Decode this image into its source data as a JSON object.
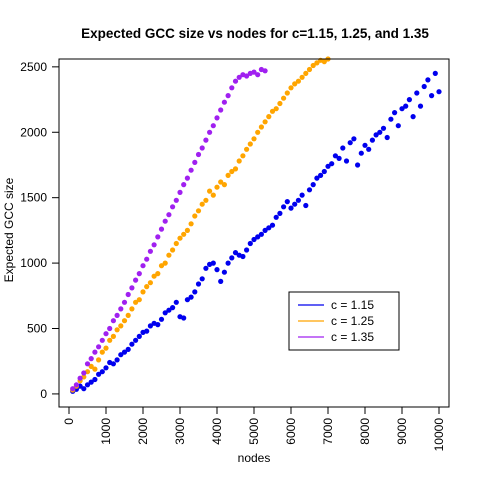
{
  "chart_data": {
    "type": "scatter",
    "title": "Expected GCC size vs nodes for c=1.15, 1.25, and 1.35",
    "xlabel": "nodes",
    "ylabel": "Expected GCC size",
    "xlim": [
      -270,
      10270
    ],
    "ylim": [
      -100,
      2560
    ],
    "x_ticks": [
      0,
      1000,
      2000,
      3000,
      4000,
      5000,
      6000,
      7000,
      8000,
      9000,
      10000
    ],
    "y_ticks": [
      0,
      500,
      1000,
      1500,
      2000,
      2500
    ],
    "grid": false,
    "legend_position": "lower-right",
    "series": [
      {
        "name": "c = 1.15",
        "color": "#0000ee",
        "points": [
          [
            100,
            20
          ],
          [
            200,
            35
          ],
          [
            300,
            60
          ],
          [
            400,
            40
          ],
          [
            500,
            70
          ],
          [
            600,
            90
          ],
          [
            700,
            110
          ],
          [
            800,
            150
          ],
          [
            900,
            170
          ],
          [
            1000,
            200
          ],
          [
            1100,
            240
          ],
          [
            1200,
            230
          ],
          [
            1300,
            260
          ],
          [
            1400,
            300
          ],
          [
            1500,
            320
          ],
          [
            1600,
            340
          ],
          [
            1700,
            380
          ],
          [
            1800,
            410
          ],
          [
            1900,
            440
          ],
          [
            2000,
            470
          ],
          [
            2100,
            480
          ],
          [
            2200,
            520
          ],
          [
            2300,
            540
          ],
          [
            2400,
            530
          ],
          [
            2500,
            570
          ],
          [
            2600,
            620
          ],
          [
            2700,
            640
          ],
          [
            2800,
            660
          ],
          [
            2900,
            700
          ],
          [
            3000,
            590
          ],
          [
            3100,
            580
          ],
          [
            3200,
            720
          ],
          [
            3300,
            740
          ],
          [
            3400,
            780
          ],
          [
            3500,
            840
          ],
          [
            3600,
            880
          ],
          [
            3700,
            960
          ],
          [
            3800,
            990
          ],
          [
            3900,
            1000
          ],
          [
            4000,
            950
          ],
          [
            4100,
            860
          ],
          [
            4200,
            930
          ],
          [
            4300,
            1000
          ],
          [
            4400,
            1040
          ],
          [
            4500,
            1080
          ],
          [
            4600,
            1060
          ],
          [
            4700,
            1050
          ],
          [
            4800,
            1100
          ],
          [
            4900,
            1150
          ],
          [
            5000,
            1180
          ],
          [
            5100,
            1200
          ],
          [
            5200,
            1220
          ],
          [
            5300,
            1250
          ],
          [
            5400,
            1270
          ],
          [
            5500,
            1290
          ],
          [
            5600,
            1350
          ],
          [
            5700,
            1380
          ],
          [
            5800,
            1430
          ],
          [
            5900,
            1470
          ],
          [
            6000,
            1420
          ],
          [
            6100,
            1450
          ],
          [
            6200,
            1480
          ],
          [
            6300,
            1520
          ],
          [
            6400,
            1440
          ],
          [
            6500,
            1560
          ],
          [
            6600,
            1600
          ],
          [
            6700,
            1650
          ],
          [
            6800,
            1670
          ],
          [
            6900,
            1700
          ],
          [
            7000,
            1740
          ],
          [
            7100,
            1760
          ],
          [
            7200,
            1820
          ],
          [
            7300,
            1800
          ],
          [
            7400,
            1880
          ],
          [
            7500,
            1780
          ],
          [
            7600,
            1920
          ],
          [
            7700,
            1950
          ],
          [
            7800,
            1750
          ],
          [
            7900,
            1840
          ],
          [
            8000,
            1900
          ],
          [
            8100,
            1870
          ],
          [
            8200,
            1940
          ],
          [
            8300,
            1980
          ],
          [
            8400,
            2000
          ],
          [
            8500,
            2030
          ],
          [
            8600,
            1960
          ],
          [
            8700,
            2100
          ],
          [
            8800,
            2150
          ],
          [
            8900,
            2050
          ],
          [
            9000,
            2180
          ],
          [
            9100,
            2200
          ],
          [
            9200,
            2250
          ],
          [
            9300,
            2120
          ],
          [
            9400,
            2300
          ],
          [
            9500,
            2200
          ],
          [
            9600,
            2350
          ],
          [
            9700,
            2400
          ],
          [
            9800,
            2280
          ],
          [
            9900,
            2450
          ],
          [
            10000,
            2310
          ]
        ]
      },
      {
        "name": "c = 1.25",
        "color": "#ffa500",
        "points": [
          [
            100,
            30
          ],
          [
            200,
            60
          ],
          [
            300,
            100
          ],
          [
            400,
            130
          ],
          [
            500,
            170
          ],
          [
            600,
            210
          ],
          [
            700,
            190
          ],
          [
            800,
            260
          ],
          [
            900,
            320
          ],
          [
            1000,
            350
          ],
          [
            1100,
            410
          ],
          [
            1200,
            440
          ],
          [
            1300,
            490
          ],
          [
            1400,
            520
          ],
          [
            1500,
            560
          ],
          [
            1600,
            600
          ],
          [
            1700,
            650
          ],
          [
            1800,
            700
          ],
          [
            1900,
            720
          ],
          [
            2000,
            780
          ],
          [
            2100,
            820
          ],
          [
            2200,
            850
          ],
          [
            2300,
            900
          ],
          [
            2400,
            920
          ],
          [
            2500,
            980
          ],
          [
            2600,
            1000
          ],
          [
            2700,
            1060
          ],
          [
            2800,
            1100
          ],
          [
            2900,
            1150
          ],
          [
            3000,
            1190
          ],
          [
            3100,
            1220
          ],
          [
            3200,
            1250
          ],
          [
            3300,
            1300
          ],
          [
            3400,
            1360
          ],
          [
            3500,
            1400
          ],
          [
            3600,
            1450
          ],
          [
            3700,
            1480
          ],
          [
            3800,
            1550
          ],
          [
            3900,
            1520
          ],
          [
            4000,
            1580
          ],
          [
            4100,
            1620
          ],
          [
            4200,
            1600
          ],
          [
            4300,
            1670
          ],
          [
            4400,
            1700
          ],
          [
            4500,
            1720
          ],
          [
            4600,
            1780
          ],
          [
            4700,
            1820
          ],
          [
            4800,
            1870
          ],
          [
            4900,
            1910
          ],
          [
            5000,
            1950
          ],
          [
            5100,
            2000
          ],
          [
            5200,
            2040
          ],
          [
            5300,
            2080
          ],
          [
            5400,
            2120
          ],
          [
            5500,
            2160
          ],
          [
            5600,
            2180
          ],
          [
            5700,
            2220
          ],
          [
            5800,
            2260
          ],
          [
            5900,
            2300
          ],
          [
            6000,
            2340
          ],
          [
            6100,
            2370
          ],
          [
            6200,
            2390
          ],
          [
            6300,
            2420
          ],
          [
            6400,
            2450
          ],
          [
            6500,
            2480
          ],
          [
            6600,
            2510
          ],
          [
            6700,
            2530
          ],
          [
            6800,
            2550
          ],
          [
            6900,
            2540
          ],
          [
            7000,
            2560
          ]
        ]
      },
      {
        "name": "c = 1.35",
        "color": "#a020f0",
        "points": [
          [
            100,
            40
          ],
          [
            200,
            70
          ],
          [
            300,
            120
          ],
          [
            400,
            160
          ],
          [
            500,
            230
          ],
          [
            600,
            270
          ],
          [
            700,
            320
          ],
          [
            800,
            360
          ],
          [
            900,
            410
          ],
          [
            1000,
            460
          ],
          [
            1100,
            500
          ],
          [
            1200,
            560
          ],
          [
            1300,
            600
          ],
          [
            1400,
            650
          ],
          [
            1500,
            700
          ],
          [
            1600,
            760
          ],
          [
            1700,
            810
          ],
          [
            1800,
            870
          ],
          [
            1900,
            920
          ],
          [
            2000,
            980
          ],
          [
            2100,
            1030
          ],
          [
            2200,
            1090
          ],
          [
            2300,
            1140
          ],
          [
            2400,
            1200
          ],
          [
            2500,
            1260
          ],
          [
            2600,
            1320
          ],
          [
            2700,
            1370
          ],
          [
            2800,
            1430
          ],
          [
            2900,
            1480
          ],
          [
            3000,
            1540
          ],
          [
            3100,
            1600
          ],
          [
            3200,
            1650
          ],
          [
            3300,
            1710
          ],
          [
            3400,
            1770
          ],
          [
            3500,
            1830
          ],
          [
            3600,
            1880
          ],
          [
            3700,
            1940
          ],
          [
            3800,
            2000
          ],
          [
            3900,
            2050
          ],
          [
            4000,
            2110
          ],
          [
            4100,
            2170
          ],
          [
            4200,
            2230
          ],
          [
            4300,
            2280
          ],
          [
            4400,
            2340
          ],
          [
            4500,
            2390
          ],
          [
            4600,
            2420
          ],
          [
            4700,
            2440
          ],
          [
            4800,
            2430
          ],
          [
            4900,
            2450
          ],
          [
            5000,
            2460
          ],
          [
            5100,
            2440
          ],
          [
            5200,
            2480
          ],
          [
            5300,
            2470
          ]
        ]
      }
    ]
  }
}
